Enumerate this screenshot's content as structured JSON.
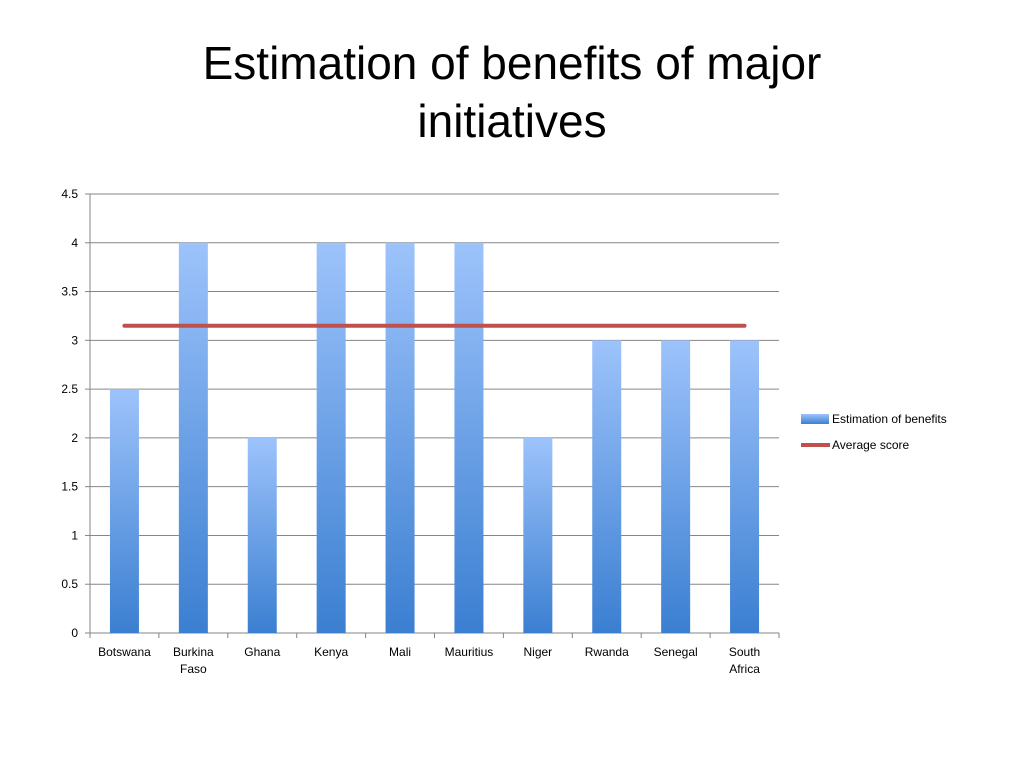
{
  "title": {
    "line1": "Estimation of benefits of major",
    "line2": "initiatives"
  },
  "chart_data": {
    "type": "bar",
    "categories": [
      [
        "Botswana"
      ],
      [
        "Burkina",
        "Faso"
      ],
      [
        "Ghana"
      ],
      [
        "Kenya"
      ],
      [
        "Mali"
      ],
      [
        "Mauritius"
      ],
      [
        "Niger"
      ],
      [
        "Rwanda"
      ],
      [
        "Senegal"
      ],
      [
        "South",
        "Africa"
      ]
    ],
    "series": [
      {
        "name": "Estimation of benefits",
        "kind": "bar",
        "values": [
          2.5,
          4,
          2,
          4,
          4,
          4,
          2,
          3,
          3,
          3
        ],
        "color_top": "#9dc3fb",
        "color_bottom": "#3b7fd1"
      },
      {
        "name": "Average score",
        "kind": "line",
        "values": [
          3.15,
          3.15,
          3.15,
          3.15,
          3.15,
          3.15,
          3.15,
          3.15,
          3.15,
          3.15
        ],
        "color": "#c0504d"
      }
    ],
    "yticks": [
      "0",
      "0.5",
      "1",
      "1.5",
      "2",
      "2.5",
      "3",
      "3.5",
      "4",
      "4.5"
    ],
    "ylim": [
      0,
      4.5
    ],
    "grid": true,
    "legend_position": "right",
    "xlabel": "",
    "ylabel": ""
  }
}
